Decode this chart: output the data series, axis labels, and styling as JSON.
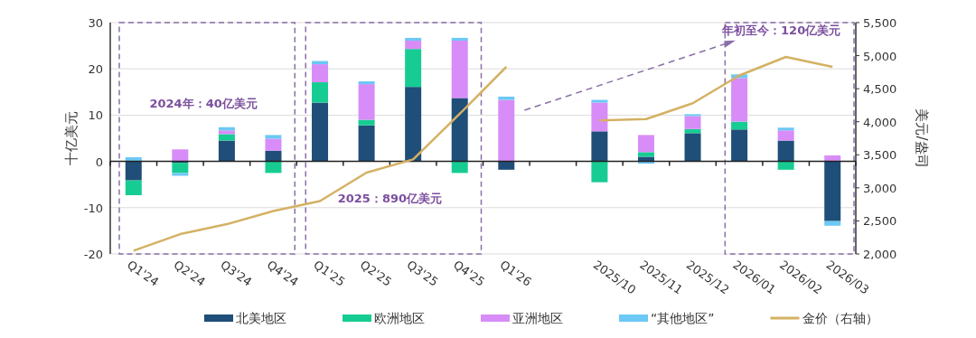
{
  "chart_data": {
    "type": "bar",
    "stacked": true,
    "categories": [
      "Q1'24",
      "Q2'24",
      "Q3'24",
      "Q4'24",
      "Q1'25",
      "Q2'25",
      "Q3'25",
      "Q4'25",
      "Q1'26",
      null,
      "2025/10",
      "2025/11",
      "2025/12",
      "2026/01",
      "2026/02",
      "2026/03"
    ],
    "series": [
      {
        "name": "北美地区",
        "color": "#1f4e79",
        "values": [
          -4.1,
          -0.3,
          4.5,
          2.3,
          12.7,
          7.8,
          16.1,
          13.7,
          -1.8,
          null,
          6.5,
          1.0,
          6.1,
          6.9,
          4.5,
          -12.9
        ]
      },
      {
        "name": "欧洲地区",
        "color": "#17cc93",
        "values": [
          -3.2,
          -2.2,
          1.4,
          -2.5,
          4.4,
          1.2,
          8.2,
          -2.5,
          0,
          null,
          -4.5,
          1.0,
          0.9,
          1.7,
          -1.8,
          0
        ]
      },
      {
        "name": "亚洲地区",
        "color": "#d88cf7",
        "values": [
          0,
          2.6,
          0.8,
          2.6,
          3.9,
          7.7,
          1.8,
          12.4,
          13.3,
          null,
          6.2,
          3.7,
          2.8,
          9.4,
          2.2,
          1.3
        ]
      },
      {
        "name": "“其他地区”",
        "color": "#6cc8f4",
        "values": [
          0.9,
          -0.6,
          0.7,
          0.8,
          0.7,
          0.6,
          0.6,
          0.6,
          0.7,
          null,
          0.6,
          -0.5,
          0.4,
          0.8,
          0.6,
          -1.0
        ]
      },
      {
        "name": "金价（右轴）",
        "type": "line",
        "axis": "y2",
        "color": "#d4b163",
        "values": [
          2050,
          2300,
          2450,
          2650,
          2800,
          3230,
          3430,
          4120,
          4830,
          null,
          4020,
          4040,
          4280,
          4700,
          4980,
          4830
        ]
      }
    ],
    "ylabel": "十亿美元",
    "y2label": "美元/盎司",
    "ylim": [
      -20,
      30
    ],
    "yticks": [
      -20,
      -10,
      0,
      10,
      20,
      30
    ],
    "y2lim": [
      2000,
      5500
    ],
    "y2ticks": [
      {
        "value": 2000,
        "label": "2,000"
      },
      {
        "value": 2500,
        "label": "2,500"
      },
      {
        "value": 3000,
        "label": "3,000"
      },
      {
        "value": 3500,
        "label": "3,500"
      },
      {
        "value": 4000,
        "label": "4,000"
      },
      {
        "value": 4500,
        "label": "4,500"
      },
      {
        "value": 5000,
        "label": "5,000"
      },
      {
        "value": 5500,
        "label": "5,500"
      }
    ],
    "grid": "y",
    "legend": "bottom",
    "annotations": [
      "2024年：40亿美元",
      "2025：890亿美元",
      "年初至今：120亿美元"
    ]
  }
}
